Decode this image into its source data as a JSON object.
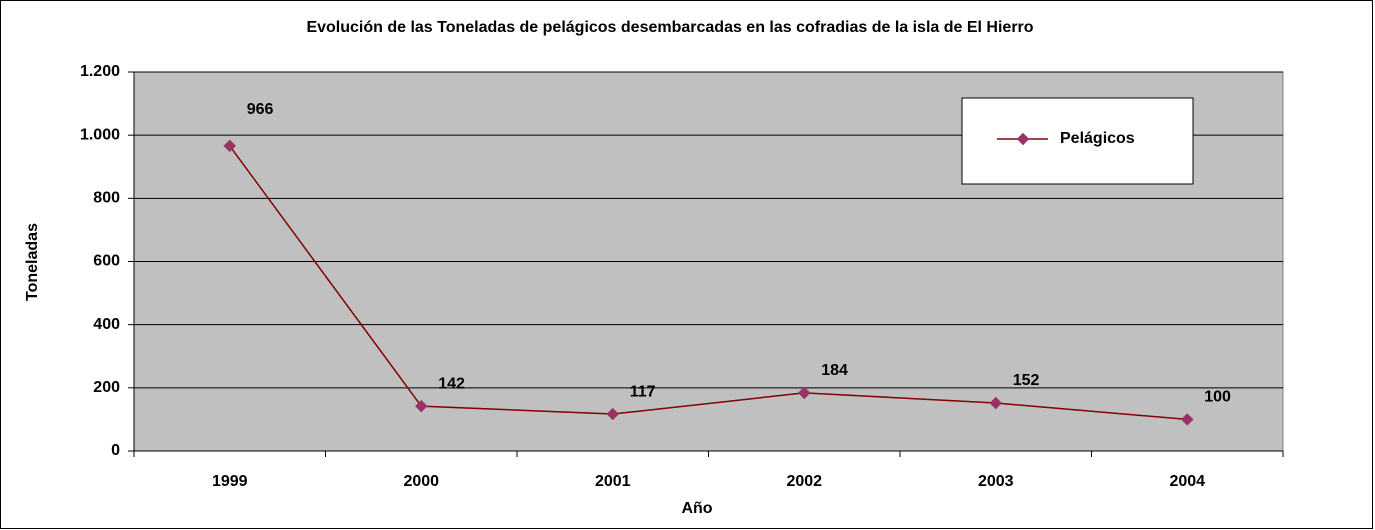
{
  "chart_data": {
    "type": "line",
    "title": "Evolución de las Toneladas de pelágicos desembarcadas en las cofradias de la isla de El Hierro",
    "x_label": "Año",
    "y_label": "Toneladas",
    "categories": [
      "1999",
      "2000",
      "2001",
      "2002",
      "2003",
      "2004"
    ],
    "series": [
      {
        "name": "Pelágicos",
        "color": "#800000",
        "marker_color": "#993366",
        "values": [
          966,
          142,
          117,
          184,
          152,
          100
        ]
      }
    ],
    "ylim": [
      0,
      1200
    ],
    "yticks": [
      0,
      200,
      400,
      600,
      800,
      {
        "value": 1000,
        "label": "1.000"
      },
      {
        "value": 1200,
        "label": "1.200"
      }
    ],
    "grid": true,
    "plot_background": "#c0c0c0",
    "legend": "upper right"
  }
}
